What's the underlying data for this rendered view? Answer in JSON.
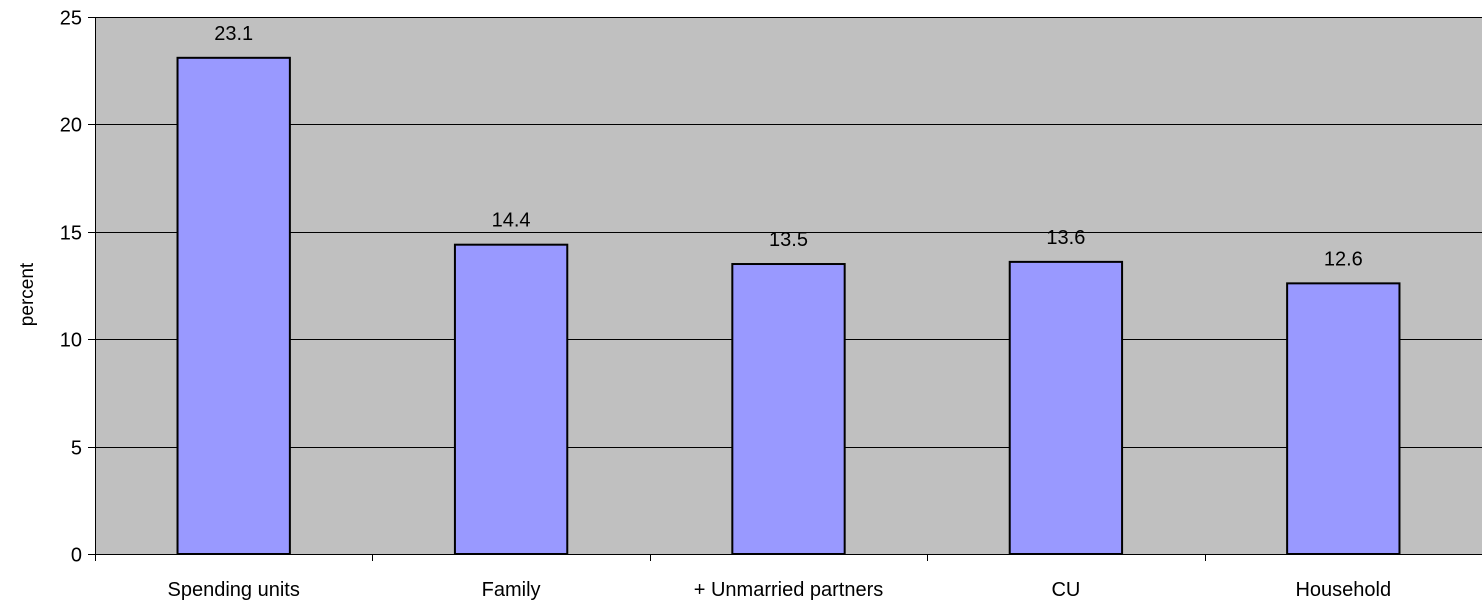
{
  "chart_data": {
    "type": "bar",
    "categories": [
      "Spending units",
      "Family",
      "+ Unmarried partners",
      "CU",
      "Household"
    ],
    "values": [
      23.1,
      14.4,
      13.5,
      13.6,
      12.6
    ],
    "value_labels": [
      "23.1",
      "14.4",
      "13.5",
      "13.6",
      "12.6"
    ],
    "title": "",
    "xlabel": "",
    "ylabel": "percent",
    "ylim": [
      0,
      25
    ],
    "yticks": [
      0,
      5,
      10,
      15,
      20,
      25
    ],
    "grid": true,
    "legend": "none",
    "colors": {
      "plot_background": "#c0c0c0",
      "bar_fill": "#9999ff",
      "bar_stroke": "#000000",
      "gridline": "#000000"
    }
  }
}
